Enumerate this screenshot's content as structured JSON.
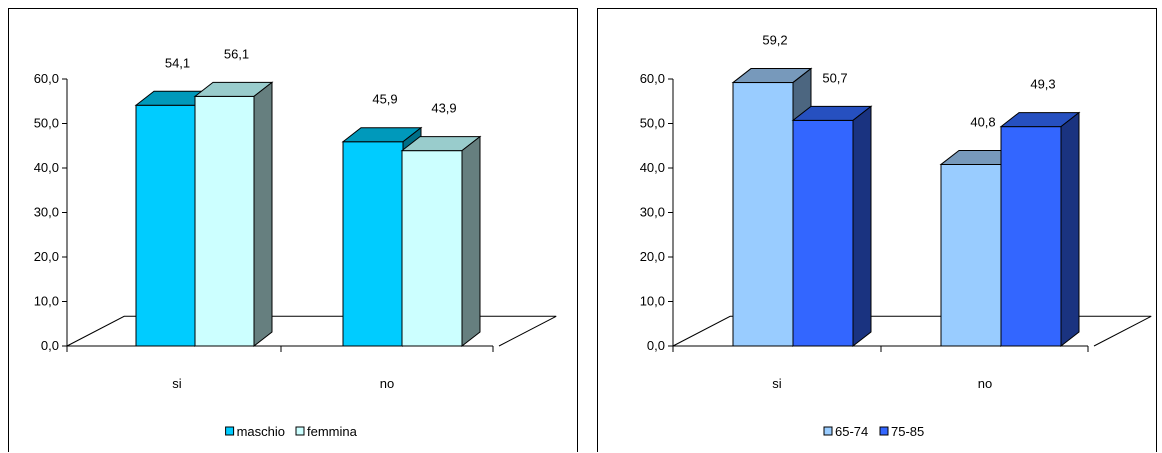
{
  "colors": {
    "maschio": {
      "front": "#00ccff",
      "top": "#0099bb",
      "side": "#006f88"
    },
    "femmina": {
      "front": "#ccffff",
      "top": "#99cccc",
      "side": "#667f7f"
    },
    "age_65_74": {
      "front": "#99ccff",
      "top": "#7799bb",
      "side": "#4c6680"
    },
    "age_75_85": {
      "front": "#3366ff",
      "top": "#2650c0",
      "side": "#1a3380"
    }
  },
  "chart_data": [
    {
      "type": "bar",
      "categories": [
        "si",
        "no"
      ],
      "series": [
        {
          "name": "maschio",
          "values": [
            54.1,
            45.9
          ],
          "labels": [
            "54,1",
            "45,9"
          ],
          "color_key": "maschio"
        },
        {
          "name": "femmina",
          "values": [
            56.1,
            43.9
          ],
          "labels": [
            "56,1",
            "43,9"
          ],
          "color_key": "femmina"
        }
      ],
      "yticks": [
        "0,0",
        "10,0",
        "20,0",
        "30,0",
        "40,0",
        "50,0",
        "60,0"
      ],
      "ylim": [
        0,
        60
      ],
      "legend": "bottom",
      "grid": false
    },
    {
      "type": "bar",
      "categories": [
        "si",
        "no"
      ],
      "series": [
        {
          "name": "65-74",
          "values": [
            59.2,
            40.8
          ],
          "labels": [
            "59,2",
            "40,8"
          ],
          "color_key": "age_65_74"
        },
        {
          "name": "75-85",
          "values": [
            50.7,
            49.3
          ],
          "labels": [
            "50,7",
            "49,3"
          ],
          "color_key": "age_75_85"
        }
      ],
      "yticks": [
        "0,0",
        "10,0",
        "20,0",
        "30,0",
        "40,0",
        "50,0",
        "60,0"
      ],
      "ylim": [
        0,
        60
      ],
      "legend": "bottom",
      "grid": false
    }
  ]
}
